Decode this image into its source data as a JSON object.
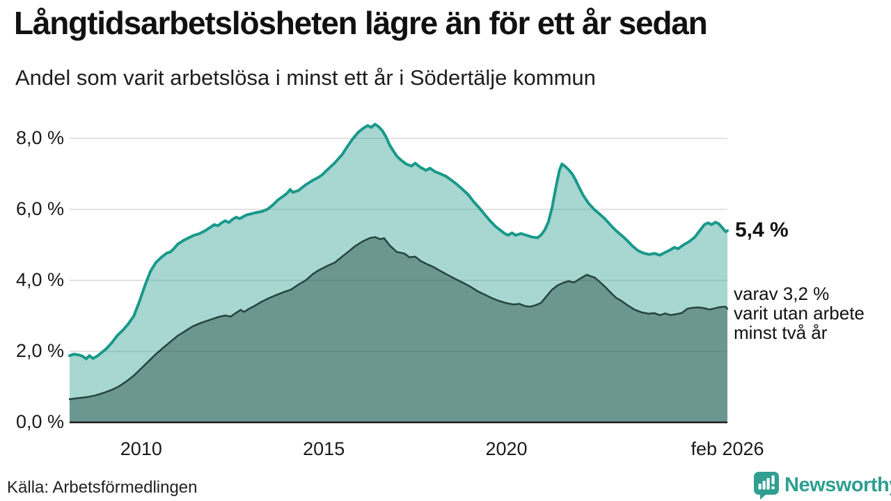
{
  "header": {
    "title": "Långtidsarbetslösheten lägre än för ett år sedan",
    "subtitle": "Andel som varit arbetslösa i minst ett år i Södertälje kommun"
  },
  "annotations": {
    "end_value": "5,4 %",
    "breakdown": [
      "varav 3,2 %",
      "varit utan arbete",
      "minst två år"
    ]
  },
  "footer": {
    "source": "Källa: Arbetsförmedlingen",
    "brand": "Newsworthy"
  },
  "colors": {
    "brand_teal": "#2f9f90",
    "title_text": "#111111"
  },
  "chart_data": {
    "type": "area",
    "title": "Långtidsarbetslösheten lägre än för ett år sedan",
    "subtitle": "Andel som varit arbetslösa i minst ett år i Södertälje kommun",
    "x_range": [
      2008.04,
      2026.05
    ],
    "y_range": [
      0,
      8.86
    ],
    "grid": true,
    "colors": {
      "grid": "#d9d9d9",
      "axis": "#1c1c1c"
    },
    "y_ticks": [
      {
        "value": 8,
        "label": "8,0 %"
      },
      {
        "value": 6,
        "label": "6,0 %"
      },
      {
        "value": 4,
        "label": "4,0 %"
      },
      {
        "value": 2,
        "label": "2,0 %"
      },
      {
        "value": 0,
        "label": "0,0 %"
      }
    ],
    "x_ticks": [
      {
        "t": 2010,
        "label": "2010"
      },
      {
        "t": 2015,
        "label": "2015"
      },
      {
        "t": 2020,
        "label": "2020"
      },
      {
        "t": 2026.05,
        "label": "feb 2026"
      }
    ],
    "series": [
      {
        "name": "arbetslösa minst ett år",
        "end_label": "5,4 %",
        "end_value": 5.4,
        "line_color": "#18998a",
        "line_width": 4,
        "fill_color": "#2f9e8f",
        "fill_opacity": 0.42,
        "points": [
          [
            2008.04,
            1.88
          ],
          [
            2008.15,
            1.92
          ],
          [
            2008.3,
            1.9
          ],
          [
            2008.4,
            1.86
          ],
          [
            2008.5,
            1.79
          ],
          [
            2008.58,
            1.88
          ],
          [
            2008.68,
            1.8
          ],
          [
            2008.8,
            1.87
          ],
          [
            2008.92,
            1.97
          ],
          [
            2009.05,
            2.08
          ],
          [
            2009.2,
            2.25
          ],
          [
            2009.35,
            2.45
          ],
          [
            2009.5,
            2.6
          ],
          [
            2009.65,
            2.78
          ],
          [
            2009.8,
            3.0
          ],
          [
            2009.95,
            3.4
          ],
          [
            2010.1,
            3.85
          ],
          [
            2010.25,
            4.25
          ],
          [
            2010.4,
            4.5
          ],
          [
            2010.55,
            4.65
          ],
          [
            2010.7,
            4.77
          ],
          [
            2010.8,
            4.8
          ],
          [
            2010.9,
            4.9
          ],
          [
            2011.0,
            5.02
          ],
          [
            2011.15,
            5.12
          ],
          [
            2011.3,
            5.2
          ],
          [
            2011.45,
            5.27
          ],
          [
            2011.6,
            5.32
          ],
          [
            2011.75,
            5.4
          ],
          [
            2011.9,
            5.5
          ],
          [
            2012.0,
            5.57
          ],
          [
            2012.1,
            5.54
          ],
          [
            2012.2,
            5.62
          ],
          [
            2012.3,
            5.68
          ],
          [
            2012.4,
            5.63
          ],
          [
            2012.5,
            5.72
          ],
          [
            2012.6,
            5.78
          ],
          [
            2012.7,
            5.74
          ],
          [
            2012.8,
            5.8
          ],
          [
            2012.9,
            5.85
          ],
          [
            2013.0,
            5.87
          ],
          [
            2013.1,
            5.9
          ],
          [
            2013.2,
            5.92
          ],
          [
            2013.3,
            5.94
          ],
          [
            2013.45,
            6.0
          ],
          [
            2013.6,
            6.12
          ],
          [
            2013.75,
            6.27
          ],
          [
            2013.9,
            6.38
          ],
          [
            2014.0,
            6.46
          ],
          [
            2014.08,
            6.56
          ],
          [
            2014.15,
            6.48
          ],
          [
            2014.3,
            6.53
          ],
          [
            2014.5,
            6.69
          ],
          [
            2014.7,
            6.82
          ],
          [
            2014.85,
            6.9
          ],
          [
            2014.95,
            6.97
          ],
          [
            2015.1,
            7.12
          ],
          [
            2015.3,
            7.31
          ],
          [
            2015.5,
            7.54
          ],
          [
            2015.65,
            7.78
          ],
          [
            2015.8,
            8.0
          ],
          [
            2015.95,
            8.18
          ],
          [
            2016.1,
            8.3
          ],
          [
            2016.2,
            8.36
          ],
          [
            2016.3,
            8.31
          ],
          [
            2016.4,
            8.4
          ],
          [
            2016.5,
            8.33
          ],
          [
            2016.6,
            8.22
          ],
          [
            2016.7,
            8.05
          ],
          [
            2016.8,
            7.82
          ],
          [
            2016.9,
            7.65
          ],
          [
            2017.0,
            7.5
          ],
          [
            2017.1,
            7.4
          ],
          [
            2017.25,
            7.28
          ],
          [
            2017.4,
            7.22
          ],
          [
            2017.5,
            7.3
          ],
          [
            2017.65,
            7.18
          ],
          [
            2017.8,
            7.1
          ],
          [
            2017.9,
            7.16
          ],
          [
            2018.05,
            7.06
          ],
          [
            2018.2,
            7.0
          ],
          [
            2018.35,
            6.93
          ],
          [
            2018.5,
            6.82
          ],
          [
            2018.65,
            6.7
          ],
          [
            2018.8,
            6.56
          ],
          [
            2018.95,
            6.42
          ],
          [
            2019.1,
            6.22
          ],
          [
            2019.25,
            6.05
          ],
          [
            2019.4,
            5.86
          ],
          [
            2019.55,
            5.68
          ],
          [
            2019.7,
            5.52
          ],
          [
            2019.85,
            5.4
          ],
          [
            2019.95,
            5.32
          ],
          [
            2020.05,
            5.27
          ],
          [
            2020.15,
            5.34
          ],
          [
            2020.25,
            5.27
          ],
          [
            2020.4,
            5.32
          ],
          [
            2020.55,
            5.27
          ],
          [
            2020.7,
            5.22
          ],
          [
            2020.85,
            5.2
          ],
          [
            2020.95,
            5.28
          ],
          [
            2021.05,
            5.42
          ],
          [
            2021.15,
            5.65
          ],
          [
            2021.25,
            6.05
          ],
          [
            2021.35,
            6.6
          ],
          [
            2021.45,
            7.1
          ],
          [
            2021.52,
            7.28
          ],
          [
            2021.6,
            7.22
          ],
          [
            2021.7,
            7.12
          ],
          [
            2021.8,
            7.0
          ],
          [
            2021.9,
            6.82
          ],
          [
            2022.0,
            6.6
          ],
          [
            2022.1,
            6.4
          ],
          [
            2022.25,
            6.17
          ],
          [
            2022.4,
            6.0
          ],
          [
            2022.55,
            5.87
          ],
          [
            2022.7,
            5.73
          ],
          [
            2022.85,
            5.56
          ],
          [
            2023.0,
            5.4
          ],
          [
            2023.15,
            5.27
          ],
          [
            2023.3,
            5.13
          ],
          [
            2023.45,
            4.97
          ],
          [
            2023.6,
            4.84
          ],
          [
            2023.75,
            4.77
          ],
          [
            2023.9,
            4.73
          ],
          [
            2024.05,
            4.76
          ],
          [
            2024.2,
            4.71
          ],
          [
            2024.35,
            4.79
          ],
          [
            2024.5,
            4.87
          ],
          [
            2024.6,
            4.93
          ],
          [
            2024.7,
            4.89
          ],
          [
            2024.85,
            5.0
          ],
          [
            2025.0,
            5.09
          ],
          [
            2025.15,
            5.21
          ],
          [
            2025.3,
            5.41
          ],
          [
            2025.42,
            5.57
          ],
          [
            2025.52,
            5.62
          ],
          [
            2025.62,
            5.57
          ],
          [
            2025.72,
            5.64
          ],
          [
            2025.82,
            5.59
          ],
          [
            2025.92,
            5.47
          ],
          [
            2026.0,
            5.37
          ],
          [
            2026.05,
            5.4
          ]
        ]
      },
      {
        "name": "varav utan arbete minst två år",
        "end_label": "varav 3,2 % varit utan arbete minst två år",
        "end_value": 3.2,
        "line_color": "#24443d",
        "line_width": 2.5,
        "fill_color": "#1f423c",
        "fill_opacity": 0.43,
        "points": [
          [
            2008.04,
            0.65
          ],
          [
            2008.25,
            0.68
          ],
          [
            2008.5,
            0.71
          ],
          [
            2008.75,
            0.76
          ],
          [
            2009.0,
            0.84
          ],
          [
            2009.2,
            0.92
          ],
          [
            2009.4,
            1.02
          ],
          [
            2009.6,
            1.16
          ],
          [
            2009.8,
            1.32
          ],
          [
            2010.0,
            1.52
          ],
          [
            2010.2,
            1.72
          ],
          [
            2010.4,
            1.92
          ],
          [
            2010.6,
            2.1
          ],
          [
            2010.8,
            2.27
          ],
          [
            2011.0,
            2.44
          ],
          [
            2011.2,
            2.57
          ],
          [
            2011.4,
            2.7
          ],
          [
            2011.6,
            2.79
          ],
          [
            2011.8,
            2.86
          ],
          [
            2012.0,
            2.93
          ],
          [
            2012.15,
            2.98
          ],
          [
            2012.3,
            3.01
          ],
          [
            2012.45,
            2.98
          ],
          [
            2012.6,
            3.09
          ],
          [
            2012.72,
            3.17
          ],
          [
            2012.82,
            3.11
          ],
          [
            2012.95,
            3.2
          ],
          [
            2013.1,
            3.28
          ],
          [
            2013.3,
            3.4
          ],
          [
            2013.5,
            3.5
          ],
          [
            2013.7,
            3.59
          ],
          [
            2013.9,
            3.67
          ],
          [
            2014.1,
            3.74
          ],
          [
            2014.3,
            3.88
          ],
          [
            2014.5,
            4.0
          ],
          [
            2014.7,
            4.18
          ],
          [
            2014.85,
            4.28
          ],
          [
            2015.0,
            4.36
          ],
          [
            2015.1,
            4.41
          ],
          [
            2015.3,
            4.5
          ],
          [
            2015.5,
            4.67
          ],
          [
            2015.7,
            4.83
          ],
          [
            2015.85,
            4.96
          ],
          [
            2016.05,
            5.09
          ],
          [
            2016.25,
            5.19
          ],
          [
            2016.4,
            5.22
          ],
          [
            2016.55,
            5.16
          ],
          [
            2016.65,
            5.19
          ],
          [
            2016.8,
            4.99
          ],
          [
            2017.0,
            4.8
          ],
          [
            2017.2,
            4.76
          ],
          [
            2017.35,
            4.65
          ],
          [
            2017.5,
            4.67
          ],
          [
            2017.65,
            4.55
          ],
          [
            2017.8,
            4.47
          ],
          [
            2018.0,
            4.38
          ],
          [
            2018.2,
            4.26
          ],
          [
            2018.4,
            4.15
          ],
          [
            2018.6,
            4.04
          ],
          [
            2018.8,
            3.94
          ],
          [
            2019.0,
            3.83
          ],
          [
            2019.2,
            3.7
          ],
          [
            2019.4,
            3.6
          ],
          [
            2019.6,
            3.5
          ],
          [
            2019.8,
            3.42
          ],
          [
            2020.0,
            3.36
          ],
          [
            2020.2,
            3.32
          ],
          [
            2020.35,
            3.34
          ],
          [
            2020.5,
            3.28
          ],
          [
            2020.65,
            3.26
          ],
          [
            2020.8,
            3.3
          ],
          [
            2020.95,
            3.37
          ],
          [
            2021.1,
            3.56
          ],
          [
            2021.25,
            3.74
          ],
          [
            2021.4,
            3.86
          ],
          [
            2021.55,
            3.93
          ],
          [
            2021.7,
            3.98
          ],
          [
            2021.85,
            3.94
          ],
          [
            2022.0,
            4.04
          ],
          [
            2022.1,
            4.1
          ],
          [
            2022.2,
            4.16
          ],
          [
            2022.3,
            4.12
          ],
          [
            2022.42,
            4.08
          ],
          [
            2022.55,
            3.96
          ],
          [
            2022.7,
            3.82
          ],
          [
            2022.85,
            3.66
          ],
          [
            2023.0,
            3.51
          ],
          [
            2023.15,
            3.42
          ],
          [
            2023.3,
            3.31
          ],
          [
            2023.5,
            3.18
          ],
          [
            2023.7,
            3.1
          ],
          [
            2023.9,
            3.06
          ],
          [
            2024.05,
            3.08
          ],
          [
            2024.2,
            3.02
          ],
          [
            2024.35,
            3.07
          ],
          [
            2024.5,
            3.02
          ],
          [
            2024.65,
            3.05
          ],
          [
            2024.8,
            3.08
          ],
          [
            2024.95,
            3.2
          ],
          [
            2025.1,
            3.23
          ],
          [
            2025.25,
            3.24
          ],
          [
            2025.4,
            3.22
          ],
          [
            2025.55,
            3.18
          ],
          [
            2025.7,
            3.21
          ],
          [
            2025.85,
            3.25
          ],
          [
            2026.0,
            3.26
          ],
          [
            2026.05,
            3.2
          ]
        ]
      }
    ]
  }
}
